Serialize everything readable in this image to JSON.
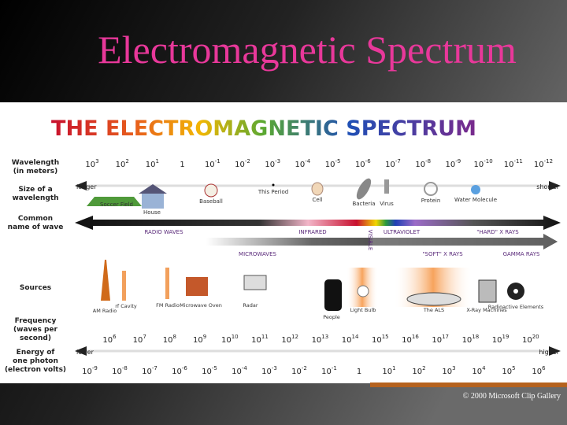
{
  "header": {
    "title": "Electromagnetic Spectrum"
  },
  "diagram": {
    "title": "THE ELECTROMAGNETIC SPECTRUM",
    "row_labels": [
      [
        "Wavelength",
        "(in meters)"
      ],
      [
        "Size of a",
        "wavelength"
      ],
      [
        "Common",
        "name of wave"
      ],
      [
        "Sources"
      ],
      [
        "Frequency",
        "(waves per",
        "second)"
      ],
      [
        "Energy of",
        "one photon",
        "(electron volts)"
      ]
    ],
    "wavelength": [
      {
        "base": "10",
        "exp": "3"
      },
      {
        "base": "10",
        "exp": "2"
      },
      {
        "base": "10",
        "exp": "1"
      },
      {
        "base": "1"
      },
      {
        "base": "10",
        "exp": "-1"
      },
      {
        "base": "10",
        "exp": "-2"
      },
      {
        "base": "10",
        "exp": "-3"
      },
      {
        "base": "10",
        "exp": "-4"
      },
      {
        "base": "10",
        "exp": "-5"
      },
      {
        "base": "10",
        "exp": "-6"
      },
      {
        "base": "10",
        "exp": "-7"
      },
      {
        "base": "10",
        "exp": "-8"
      },
      {
        "base": "10",
        "exp": "-9"
      },
      {
        "base": "10",
        "exp": "-10"
      },
      {
        "base": "10",
        "exp": "-11"
      },
      {
        "base": "10",
        "exp": "-12"
      }
    ],
    "wavelength_ends": [
      "longer",
      "shorter"
    ],
    "sizes": [
      "Soccer Field",
      "House",
      "Baseball",
      "This Period",
      "Cell",
      "Bacteria",
      "Virus",
      "Protein",
      "Water Molecule"
    ],
    "wave_names": [
      "RADIO WAVES",
      "INFRARED",
      "VISIBLE",
      "ULTRAVIOLET",
      "\"HARD\" X RAYS",
      "MICROWAVES",
      "\"SOFT\" X RAYS",
      "GAMMA RAYS"
    ],
    "sources": [
      "AM Radio",
      "rf Cavity",
      "FM Radio",
      "Microwave Oven",
      "Radar",
      "People",
      "Light Bulb",
      "The ALS",
      "X-Ray Machines",
      "Radioactive Elements"
    ],
    "frequency": [
      {
        "base": "10",
        "exp": "6"
      },
      {
        "base": "10",
        "exp": "7"
      },
      {
        "base": "10",
        "exp": "8"
      },
      {
        "base": "10",
        "exp": "9"
      },
      {
        "base": "10",
        "exp": "10"
      },
      {
        "base": "10",
        "exp": "11"
      },
      {
        "base": "10",
        "exp": "12"
      },
      {
        "base": "10",
        "exp": "13"
      },
      {
        "base": "10",
        "exp": "14"
      },
      {
        "base": "10",
        "exp": "15"
      },
      {
        "base": "10",
        "exp": "16"
      },
      {
        "base": "10",
        "exp": "17"
      },
      {
        "base": "10",
        "exp": "18"
      },
      {
        "base": "10",
        "exp": "19"
      },
      {
        "base": "10",
        "exp": "20"
      }
    ],
    "energy_ends": [
      "lower",
      "higher"
    ],
    "energy": [
      {
        "base": "10",
        "exp": "-9"
      },
      {
        "base": "10",
        "exp": "-8"
      },
      {
        "base": "10",
        "exp": "-7"
      },
      {
        "base": "10",
        "exp": "-6"
      },
      {
        "base": "10",
        "exp": "-5"
      },
      {
        "base": "10",
        "exp": "-4"
      },
      {
        "base": "10",
        "exp": "-3"
      },
      {
        "base": "10",
        "exp": "-2"
      },
      {
        "base": "10",
        "exp": "-1"
      },
      {
        "base": "1"
      },
      {
        "base": "10",
        "exp": "1"
      },
      {
        "base": "10",
        "exp": "2"
      },
      {
        "base": "10",
        "exp": "3"
      },
      {
        "base": "10",
        "exp": "4"
      },
      {
        "base": "10",
        "exp": "5"
      },
      {
        "base": "10",
        "exp": "6"
      }
    ]
  },
  "footer": {
    "credit": "© 2000 Microsoft Clip Gallery"
  }
}
